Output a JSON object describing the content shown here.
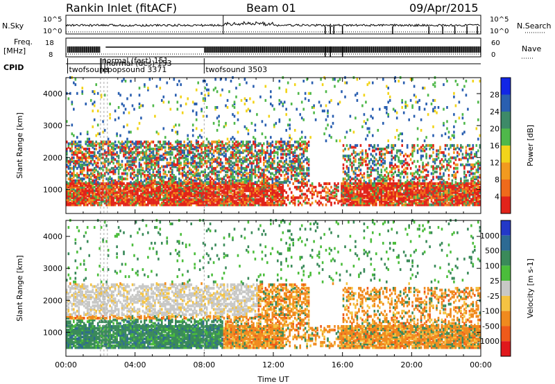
{
  "header": {
    "station": "Rankin Inlet (fitACF)",
    "beam": "Beam 01",
    "date": "09/Apr/2015"
  },
  "top_panels": {
    "nsky_label": "N.Sky",
    "nsearch_label": "N.Search",
    "nsky_ticks": [
      "10^5",
      "10^0"
    ],
    "nsearch_ticks": [
      "10^5",
      "10^0"
    ],
    "freq_label": "Freq.",
    "freq_unit": "[MHz]",
    "freq_ticks": [
      "18",
      "8"
    ],
    "nave_label": "Nave",
    "nave_ticks": [
      "60",
      "0"
    ],
    "cpid_label": "CPID",
    "cpid_entries": [
      {
        "text": "twofsound",
        "hour": 0.1
      },
      {
        "text": "epopsound 3371",
        "hour": 2.05
      },
      {
        "text": "normal (fast) 151",
        "hour": 2.0
      },
      {
        "text": "normal (des) 153",
        "hour": 2.25
      },
      {
        "text": "twofsound 3503",
        "hour": 8.0
      }
    ]
  },
  "chart_data": [
    {
      "type": "heatmap",
      "name": "power",
      "xlabel": "",
      "ylabel": "Slant Range [km]",
      "xlim": [
        0,
        24
      ],
      "ylim": [
        250,
        4500
      ],
      "yticks": [
        1000,
        2000,
        3000,
        4000
      ],
      "colorbar_label": "Power [dB]",
      "colorbar_ticks": [
        4,
        8,
        12,
        16,
        20,
        24,
        28
      ],
      "colorbar_colors": [
        "#1226e6",
        "#2a5fb0",
        "#3d8a68",
        "#4fb84a",
        "#f2d41a",
        "#f29a1f",
        "#ef6a1b",
        "#e1231a"
      ]
    },
    {
      "type": "heatmap",
      "name": "velocity",
      "xlabel": "Time UT",
      "ylabel": "Slant Range [km]",
      "xlim": [
        0,
        24
      ],
      "ylim": [
        250,
        4500
      ],
      "yticks": [
        1000,
        2000,
        3000,
        4000
      ],
      "xticks": [
        "00:00",
        "04:00",
        "08:00",
        "12:00",
        "16:00",
        "20:00",
        "00:00"
      ],
      "colorbar_label": "Velocity [m s-1]",
      "colorbar_ticks": [
        1000,
        500,
        100,
        25,
        -25,
        -100,
        -500,
        -1000
      ],
      "colorbar_colors": [
        "#2338c8",
        "#2d6a93",
        "#3a8a5a",
        "#4bbd3b",
        "#c8c8c6",
        "#f4c342",
        "#f08a1e",
        "#ef5a1a",
        "#e0181c"
      ]
    }
  ]
}
